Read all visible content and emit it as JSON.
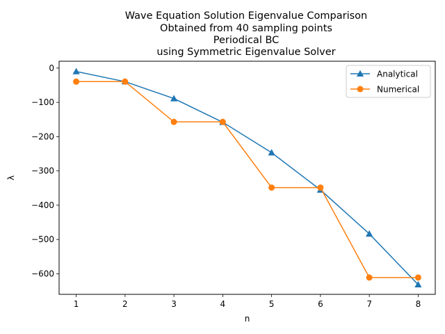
{
  "chart_data": {
    "type": "line",
    "title_lines": [
      "Wave Equation Solution Eigenvalue Comparison",
      "Obtained from 40 sampling points",
      "Periodical BC",
      "using Symmetric Eigenvalue Solver"
    ],
    "xlabel": "n",
    "ylabel": "λ",
    "x": [
      1,
      2,
      3,
      4,
      5,
      6,
      7,
      8
    ],
    "xlim": [
      0.65,
      8.35
    ],
    "ylim": [
      -660,
      20
    ],
    "xticks": [
      1,
      2,
      3,
      4,
      5,
      6,
      7,
      8
    ],
    "yticks": [
      0,
      -100,
      -200,
      -300,
      -400,
      -500,
      -600
    ],
    "ytick_labels": [
      "0",
      "−100",
      "−200",
      "−300",
      "−400",
      "−500",
      "−600"
    ],
    "grid": false,
    "legend_position": "upper right",
    "series": [
      {
        "name": "Analytical",
        "color": "#1f77b4",
        "marker": "triangle",
        "values": [
          -9.87,
          -39.5,
          -88.8,
          -157.9,
          -246.7,
          -355.3,
          -483.6,
          -631.7
        ]
      },
      {
        "name": "Numerical",
        "color": "#ff7f0e",
        "marker": "circle",
        "values": [
          -39.4,
          -39.4,
          -156.9,
          -156.9,
          -348.6,
          -348.6,
          -611.0,
          -611.0
        ]
      }
    ]
  }
}
